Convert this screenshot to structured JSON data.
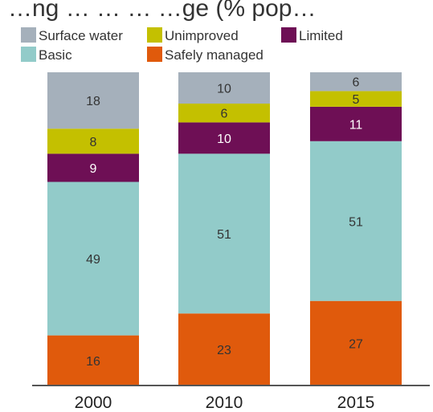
{
  "chart_data": {
    "type": "bar",
    "stacked": true,
    "title": "…ng … … … …ge (% pop…",
    "categories": [
      "2000",
      "2010",
      "2015"
    ],
    "series": [
      {
        "name": "Safely managed",
        "color": "#e05a0c",
        "label_color": "#333333",
        "values": [
          16,
          23,
          27
        ]
      },
      {
        "name": "Basic",
        "color": "#92cbc9",
        "label_color": "#333333",
        "values": [
          49,
          51,
          51
        ]
      },
      {
        "name": "Limited",
        "color": "#6e0f55",
        "label_color": "#ffffff",
        "values": [
          9,
          10,
          11
        ]
      },
      {
        "name": "Unimproved",
        "color": "#c4c000",
        "label_color": "#333333",
        "values": [
          8,
          6,
          5
        ]
      },
      {
        "name": "Surface water",
        "color": "#a5b0bb",
        "label_color": "#333333",
        "values": [
          18,
          10,
          6
        ]
      }
    ],
    "ylim": [
      0,
      100
    ],
    "legend_order": [
      "Surface water",
      "Unimproved",
      "Limited",
      "Basic",
      "Safely managed"
    ],
    "legend_position": "top",
    "grid": false
  }
}
